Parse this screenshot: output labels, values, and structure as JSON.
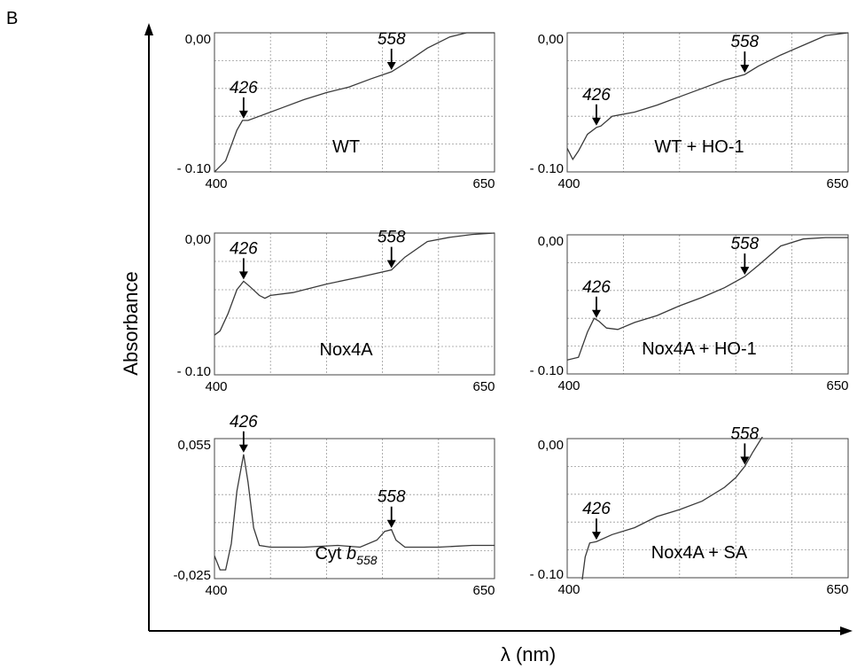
{
  "figure": {
    "panel_letter": "B",
    "ylabel": "Absorbance",
    "xlabel": "λ (nm)"
  },
  "chart_data": [
    {
      "type": "line",
      "label": "WT",
      "xlim": [
        400,
        650
      ],
      "ylim": [
        -0.1,
        0.0
      ],
      "tick_labels": {
        "x_min": "400",
        "x_max": "650",
        "y_min": "- 0.10",
        "y_max": "0,00"
      },
      "x": [
        400,
        410,
        420,
        425,
        430,
        440,
        460,
        480,
        500,
        520,
        540,
        558,
        570,
        590,
        610,
        625,
        650
      ],
      "y": [
        -0.1,
        -0.092,
        -0.07,
        -0.063,
        -0.063,
        -0.06,
        -0.054,
        -0.048,
        -0.043,
        -0.039,
        -0.033,
        -0.028,
        -0.022,
        -0.011,
        -0.003,
        0.0,
        0.0
      ],
      "annotations": [
        {
          "text": "426",
          "x": 426
        },
        {
          "text": "558",
          "x": 558
        }
      ]
    },
    {
      "type": "line",
      "label": "WT + HO-1",
      "xlim": [
        400,
        650
      ],
      "ylim": [
        -0.1,
        0.0
      ],
      "tick_labels": {
        "x_min": "400",
        "x_max": "650",
        "y_min": "- 0.10",
        "y_max": "0,00"
      },
      "x": [
        400,
        405,
        410,
        418,
        426,
        430,
        440,
        460,
        480,
        500,
        520,
        540,
        558,
        570,
        590,
        610,
        630,
        650
      ],
      "y": [
        -0.083,
        -0.091,
        -0.085,
        -0.073,
        -0.068,
        -0.067,
        -0.06,
        -0.057,
        -0.052,
        -0.046,
        -0.04,
        -0.034,
        -0.03,
        -0.024,
        -0.016,
        -0.009,
        -0.002,
        0.0
      ],
      "annotations": [
        {
          "text": "426",
          "x": 426
        },
        {
          "text": "558",
          "x": 558
        }
      ]
    },
    {
      "type": "line",
      "label": "Nox4A",
      "xlim": [
        400,
        650
      ],
      "ylim": [
        -0.1,
        0.0
      ],
      "tick_labels": {
        "x_min": "400",
        "x_max": "650",
        "y_min": "- 0.10",
        "y_max": "0,00"
      },
      "x": [
        400,
        405,
        412,
        420,
        426,
        432,
        440,
        445,
        450,
        470,
        500,
        530,
        558,
        570,
        590,
        610,
        630,
        650
      ],
      "y": [
        -0.072,
        -0.069,
        -0.057,
        -0.04,
        -0.034,
        -0.038,
        -0.044,
        -0.046,
        -0.044,
        -0.042,
        -0.036,
        -0.031,
        -0.026,
        -0.017,
        -0.006,
        -0.003,
        -0.001,
        0.0
      ],
      "annotations": [
        {
          "text": "426",
          "x": 426
        },
        {
          "text": "558",
          "x": 558
        }
      ]
    },
    {
      "type": "line",
      "label": "Nox4A + HO-1",
      "xlim": [
        400,
        650
      ],
      "ylim": [
        -0.1,
        0.0
      ],
      "tick_labels": {
        "x_min": "400",
        "x_max": "650",
        "y_min": "- 0.10",
        "y_max": "0,00"
      },
      "x": [
        400,
        410,
        418,
        424,
        428,
        435,
        445,
        460,
        480,
        500,
        520,
        540,
        558,
        570,
        590,
        610,
        630,
        650
      ],
      "y": [
        -0.09,
        -0.088,
        -0.07,
        -0.06,
        -0.062,
        -0.067,
        -0.068,
        -0.063,
        -0.058,
        -0.051,
        -0.045,
        -0.038,
        -0.03,
        -0.022,
        -0.008,
        -0.003,
        -0.002,
        -0.002
      ],
      "annotations": [
        {
          "text": "426",
          "x": 426
        },
        {
          "text": "558",
          "x": 558
        }
      ]
    },
    {
      "type": "line",
      "label": "Cyt b558",
      "label_main": "Cyt ",
      "label_b": "b",
      "label_sub": "558",
      "xlim": [
        400,
        650
      ],
      "ylim": [
        -0.025,
        0.055
      ],
      "tick_labels": {
        "x_min": "400",
        "x_max": "650",
        "y_min": "-0,025",
        "y_max": "0,055"
      },
      "x": [
        400,
        405,
        410,
        415,
        420,
        426,
        430,
        435,
        440,
        450,
        480,
        510,
        530,
        545,
        552,
        558,
        562,
        570,
        600,
        630,
        650
      ],
      "y": [
        -0.012,
        -0.02,
        -0.02,
        -0.005,
        0.025,
        0.046,
        0.03,
        0.004,
        -0.006,
        -0.007,
        -0.007,
        -0.006,
        -0.007,
        -0.003,
        0.002,
        0.003,
        -0.003,
        -0.007,
        -0.007,
        -0.006,
        -0.006
      ],
      "annotations": [
        {
          "text": "426",
          "x": 426
        },
        {
          "text": "558",
          "x": 558
        }
      ]
    },
    {
      "type": "line",
      "label": "Nox4A + SA",
      "xlim": [
        400,
        650
      ],
      "ylim": [
        -0.1,
        0.0
      ],
      "tick_labels": {
        "x_min": "400",
        "x_max": "650",
        "y_min": "- 0.10",
        "y_max": "0,00"
      },
      "x": [
        412,
        416,
        420,
        426,
        440,
        460,
        480,
        500,
        520,
        540,
        550,
        558,
        565,
        575
      ],
      "y": [
        -0.11,
        -0.085,
        -0.075,
        -0.074,
        -0.069,
        -0.064,
        -0.056,
        -0.051,
        -0.045,
        -0.035,
        -0.028,
        -0.02,
        -0.01,
        0.003
      ],
      "annotations": [
        {
          "text": "426",
          "x": 426
        },
        {
          "text": "558",
          "x": 558
        }
      ]
    }
  ]
}
